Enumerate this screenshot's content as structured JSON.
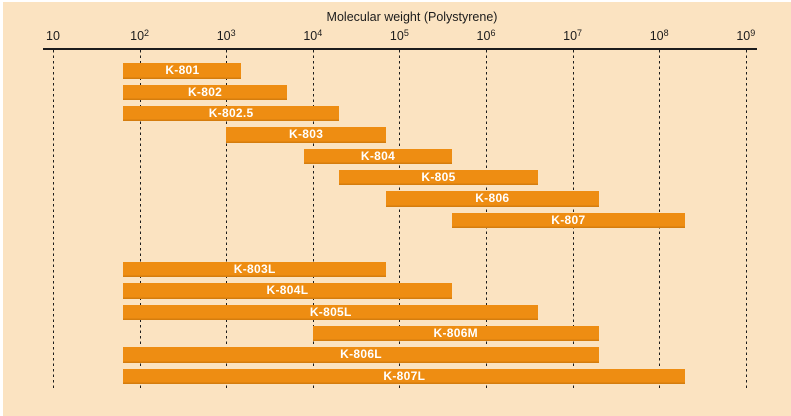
{
  "chart_data": {
    "type": "bar",
    "orientation": "horizontal-range",
    "title": "Molecular weight (Polystyrene)",
    "x_axis": {
      "scale": "log10",
      "label": "Molecular weight (Polystyrene)",
      "range": [
        10,
        1000000000
      ],
      "tick_exponents": [
        1,
        2,
        3,
        4,
        5,
        6,
        7,
        8,
        9
      ],
      "tick_base": "10",
      "grid": "dashed-vertical"
    },
    "legend_position": "none",
    "groups": [
      {
        "name": "standard-columns",
        "bars": [
          {
            "label": "K-801",
            "mw_min": 65,
            "mw_max": 1500
          },
          {
            "label": "K-802",
            "mw_min": 65,
            "mw_max": 5000
          },
          {
            "label": "K-802.5",
            "mw_min": 65,
            "mw_max": 20000
          },
          {
            "label": "K-803",
            "mw_min": 1000,
            "mw_max": 70000
          },
          {
            "label": "K-804",
            "mw_min": 8000,
            "mw_max": 400000
          },
          {
            "label": "K-805",
            "mw_min": 20000,
            "mw_max": 4000000
          },
          {
            "label": "K-806",
            "mw_min": 70000,
            "mw_max": 20000000
          },
          {
            "label": "K-807",
            "mw_min": 400000,
            "mw_max": 200000000
          }
        ]
      },
      {
        "name": "linear-columns",
        "bars": [
          {
            "label": "K-803L",
            "mw_min": 65,
            "mw_max": 70000
          },
          {
            "label": "K-804L",
            "mw_min": 65,
            "mw_max": 400000
          },
          {
            "label": "K-805L",
            "mw_min": 65,
            "mw_max": 4000000
          },
          {
            "label": "K-806M",
            "mw_min": 10000,
            "mw_max": 20000000
          },
          {
            "label": "K-806L",
            "mw_min": 65,
            "mw_max": 20000000
          },
          {
            "label": "K-807L",
            "mw_min": 65,
            "mw_max": 200000000
          }
        ]
      }
    ]
  },
  "colors": {
    "background": "#fbe3c1",
    "bar": "#ee8d12",
    "bar_label": "#ffffff",
    "axis": "#1c1c1c",
    "gridline": "#1c1c1c"
  }
}
